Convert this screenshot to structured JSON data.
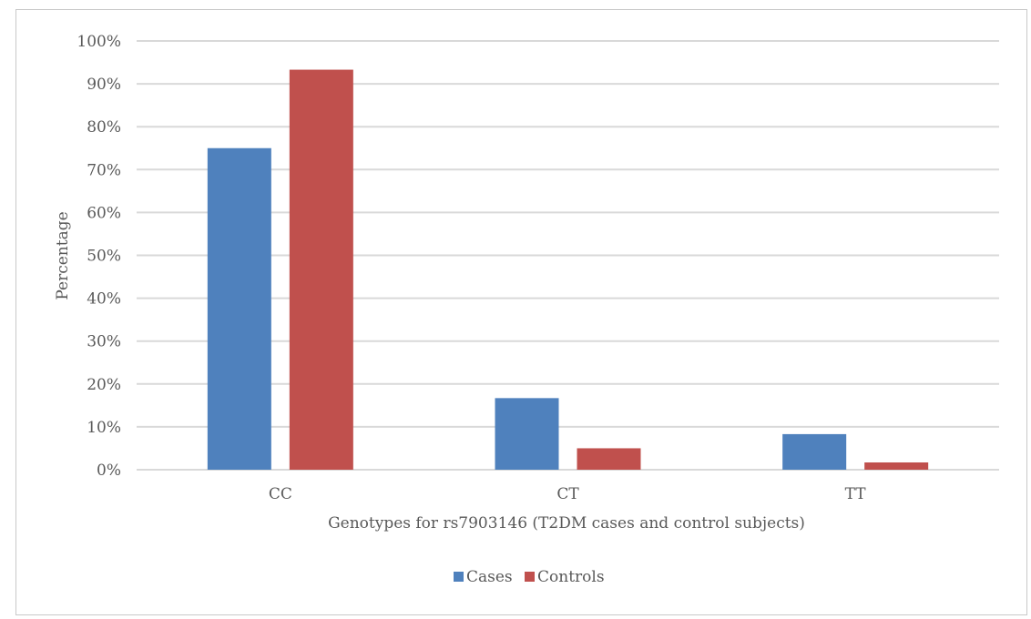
{
  "chart_data": {
    "type": "bar",
    "categories": [
      "CC",
      "CT",
      "TT"
    ],
    "series": [
      {
        "name": "Cases",
        "values": [
          75,
          16.7,
          8.3
        ],
        "color": "#4f81bd"
      },
      {
        "name": "Controls",
        "values": [
          93.3,
          5.0,
          1.7
        ],
        "color": "#c0504d"
      }
    ],
    "xlabel": "Genotypes for rs7903146 (T2DM cases and control subjects)",
    "ylabel": "Percentage",
    "ylim": [
      0,
      100
    ],
    "yticks": [
      "0%",
      "10%",
      "20%",
      "30%",
      "40%",
      "50%",
      "60%",
      "70%",
      "80%",
      "90%",
      "100%"
    ],
    "grid": true,
    "legend_position": "bottom"
  }
}
